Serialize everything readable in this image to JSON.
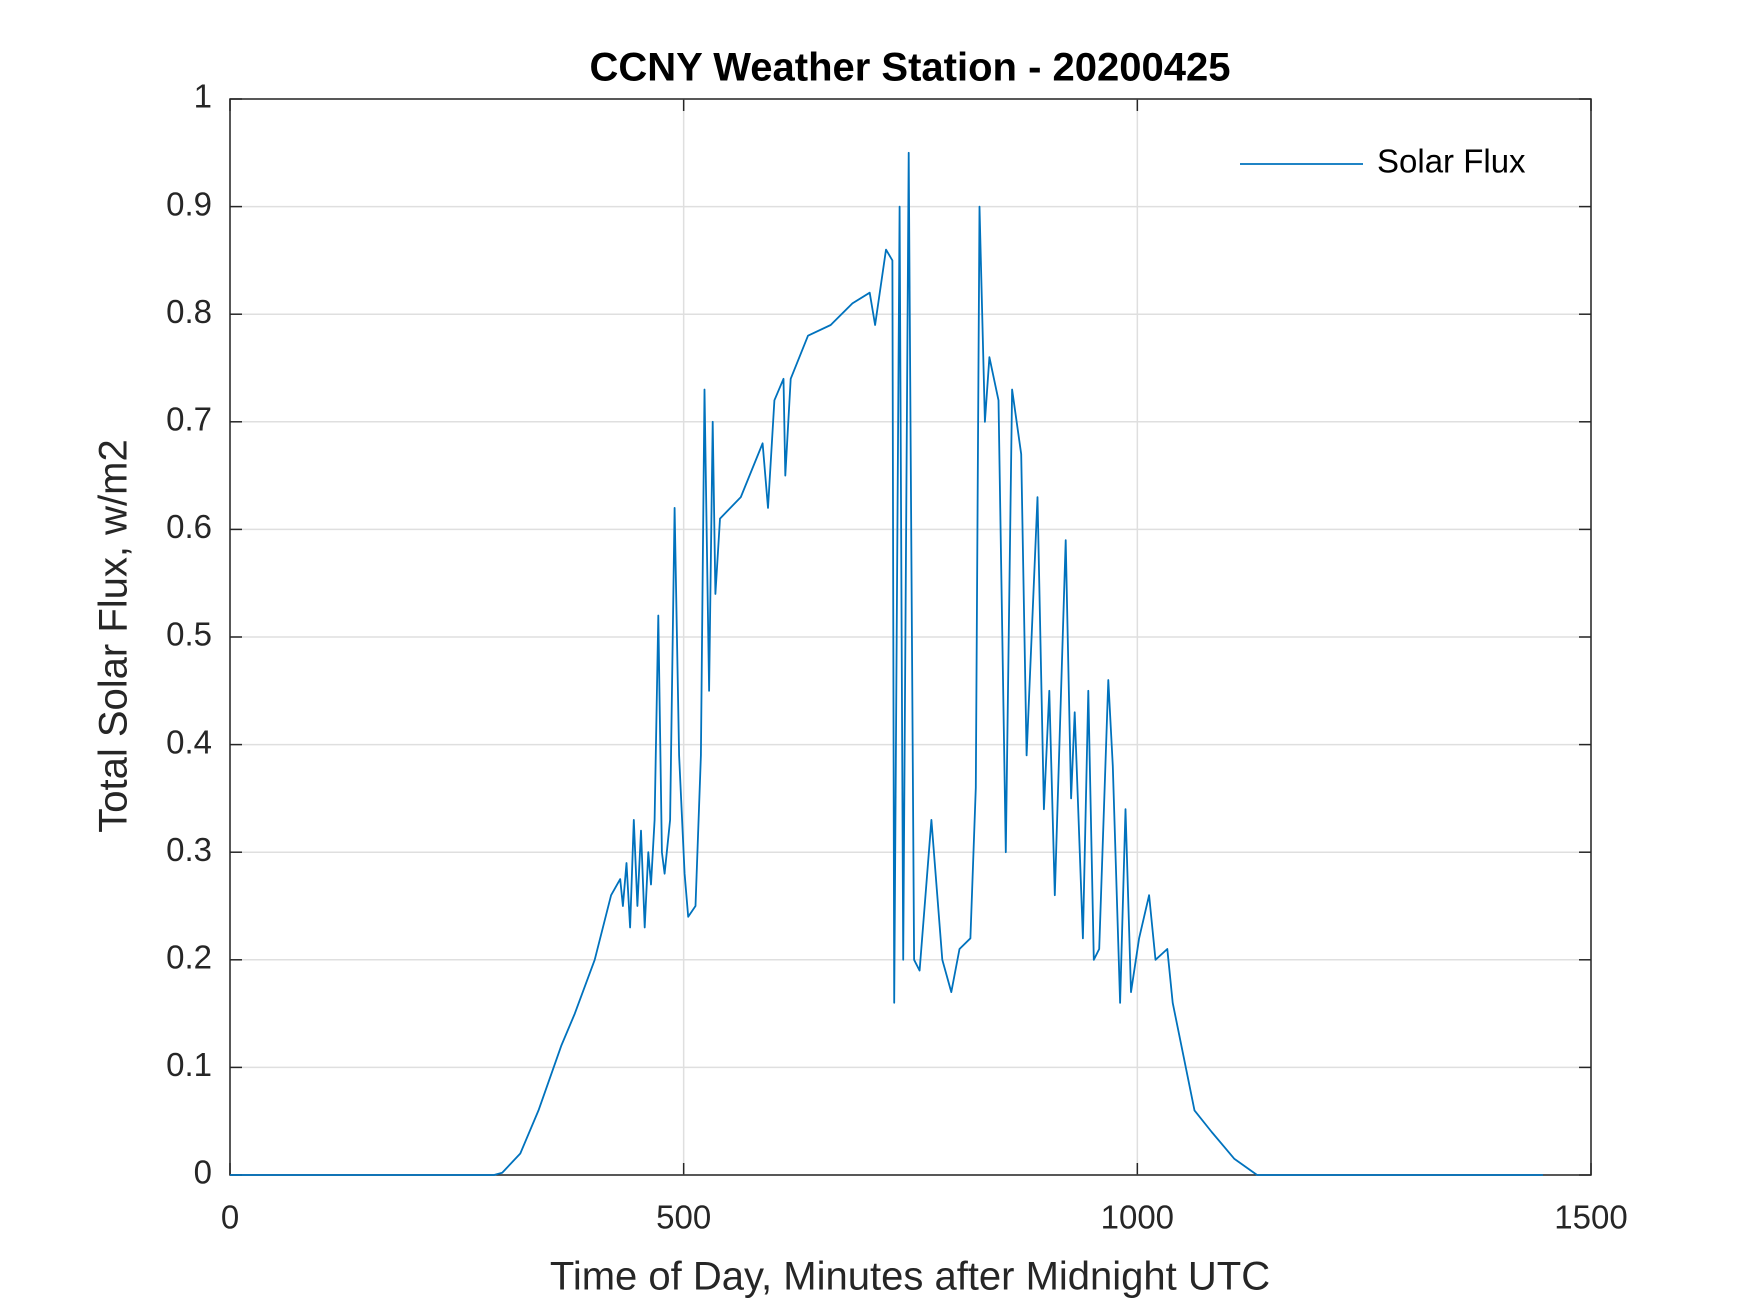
{
  "chart_data": {
    "type": "line",
    "title": "CCNY Weather Station - 20200425",
    "x_label": "Time of Day, Minutes after Midnight UTC",
    "y_label": "Total Solar Flux, w/m2",
    "x": [
      0,
      291,
      300,
      320,
      340,
      365,
      380,
      402,
      420,
      430,
      433,
      437,
      441,
      445,
      449,
      453,
      457,
      461,
      464,
      468,
      472,
      476,
      479,
      485,
      490,
      495,
      501,
      505,
      513,
      519,
      523,
      528,
      532,
      535,
      540,
      563,
      587,
      593,
      600,
      610,
      612,
      618,
      637,
      662,
      686,
      705,
      711,
      723,
      730,
      732,
      738,
      742,
      748,
      754,
      760,
      773,
      785,
      795,
      804,
      816,
      822,
      826,
      832,
      837,
      847,
      855,
      862,
      872,
      878,
      890,
      897,
      903,
      909,
      921,
      927,
      931,
      940,
      946,
      952,
      958,
      968,
      973,
      981,
      987,
      993,
      1002,
      1013,
      1020,
      1033,
      1039,
      1051,
      1063,
      1082,
      1107,
      1132,
      1447
    ],
    "series": [
      {
        "name": "Solar Flux",
        "color": "#0072bd",
        "values": [
          0,
          0,
          0.002,
          0.02,
          0.06,
          0.12,
          0.15,
          0.2,
          0.26,
          0.275,
          0.25,
          0.29,
          0.23,
          0.33,
          0.25,
          0.32,
          0.23,
          0.3,
          0.27,
          0.33,
          0.52,
          0.3,
          0.28,
          0.33,
          0.62,
          0.39,
          0.28,
          0.24,
          0.25,
          0.39,
          0.73,
          0.45,
          0.7,
          0.54,
          0.61,
          0.63,
          0.68,
          0.62,
          0.72,
          0.74,
          0.65,
          0.74,
          0.78,
          0.79,
          0.81,
          0.82,
          0.79,
          0.86,
          0.85,
          0.16,
          0.9,
          0.2,
          0.95,
          0.2,
          0.19,
          0.33,
          0.2,
          0.17,
          0.21,
          0.22,
          0.36,
          0.9,
          0.7,
          0.76,
          0.72,
          0.3,
          0.73,
          0.67,
          0.39,
          0.63,
          0.34,
          0.45,
          0.26,
          0.59,
          0.35,
          0.43,
          0.22,
          0.45,
          0.2,
          0.21,
          0.46,
          0.38,
          0.16,
          0.34,
          0.17,
          0.22,
          0.26,
          0.2,
          0.21,
          0.16,
          0.11,
          0.06,
          0.04,
          0.015,
          0,
          0
        ]
      }
    ],
    "xlim": [
      0,
      1500
    ],
    "xticks": [
      0,
      500,
      1000,
      1500
    ],
    "ylim": [
      0,
      1
    ],
    "yticks": [
      0,
      0.1,
      0.2,
      0.3,
      0.4,
      0.5,
      0.6,
      0.7,
      0.8,
      0.9,
      1
    ],
    "grid": true,
    "legend": "northeast"
  }
}
